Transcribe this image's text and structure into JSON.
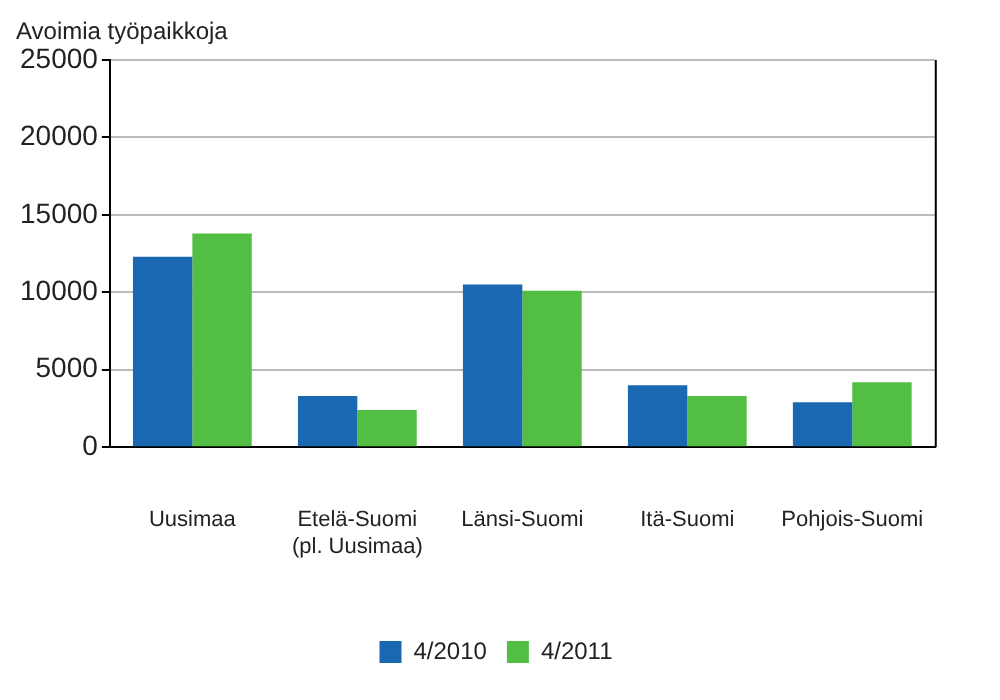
{
  "chart_data": {
    "type": "bar",
    "ylabel": "Avoimia työpaikkoja",
    "categories": [
      "Uusimaa",
      "Etelä-Suomi (pl. Uusimaa)",
      "Länsi-Suomi",
      "Itä-Suomi",
      "Pohjois-Suomi"
    ],
    "series": [
      {
        "name": "4/2010",
        "color": "#1a68b2",
        "values": [
          12300,
          3300,
          10500,
          4000,
          2900
        ]
      },
      {
        "name": "4/2011",
        "color": "#52bf44",
        "values": [
          13800,
          2400,
          10100,
          3300,
          4200
        ]
      }
    ],
    "ylim": [
      0,
      25000
    ],
    "yticks": [
      0,
      5000,
      10000,
      15000,
      20000,
      25000
    ],
    "grid": "y",
    "legend": "bottom"
  }
}
